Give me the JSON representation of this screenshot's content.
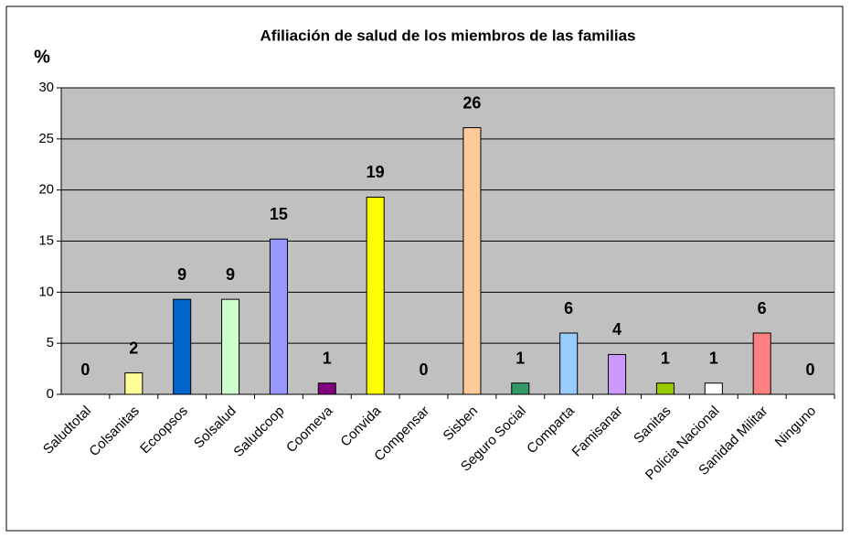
{
  "chart_data": {
    "type": "bar",
    "title": "Afiliación de salud de los miembros de las familias",
    "y_label": "%",
    "categories": [
      "Saludtotal",
      "Colsanitas",
      "Ecoopsos",
      "Solsalud",
      "Saludcoop",
      "Coomeva",
      "Convida",
      "Compensar",
      "Sisben",
      "Seguro Social",
      "Comparta",
      "Famisanar",
      "Sanitas",
      "Policia Nacional",
      "Sanidad Militar",
      "Ninguno"
    ],
    "values": [
      0,
      2.1,
      9.3,
      9.3,
      15.2,
      1.1,
      19.3,
      0,
      26.1,
      1.1,
      6,
      3.9,
      1.1,
      1.1,
      6,
      0
    ],
    "value_labels": [
      "0",
      "2",
      "9",
      "9",
      "15",
      "1",
      "19",
      "0",
      "26",
      "1",
      "6",
      "4",
      "1",
      "1",
      "6",
      "0"
    ],
    "colors": [
      "#c0c0c0",
      "#ffff99",
      "#0066cc",
      "#ccffcc",
      "#9999ff",
      "#800080",
      "#ffff00",
      "#c0c0c0",
      "#ffcc99",
      "#339966",
      "#99ccff",
      "#cc99ff",
      "#99cc00",
      "#ffffff",
      "#ff8080",
      "#c0c0c0"
    ],
    "ylim": [
      0,
      30
    ],
    "yticks": [
      0,
      5,
      10,
      15,
      20,
      25,
      30
    ],
    "grid": true,
    "plot_background": "#c0c0c0"
  }
}
